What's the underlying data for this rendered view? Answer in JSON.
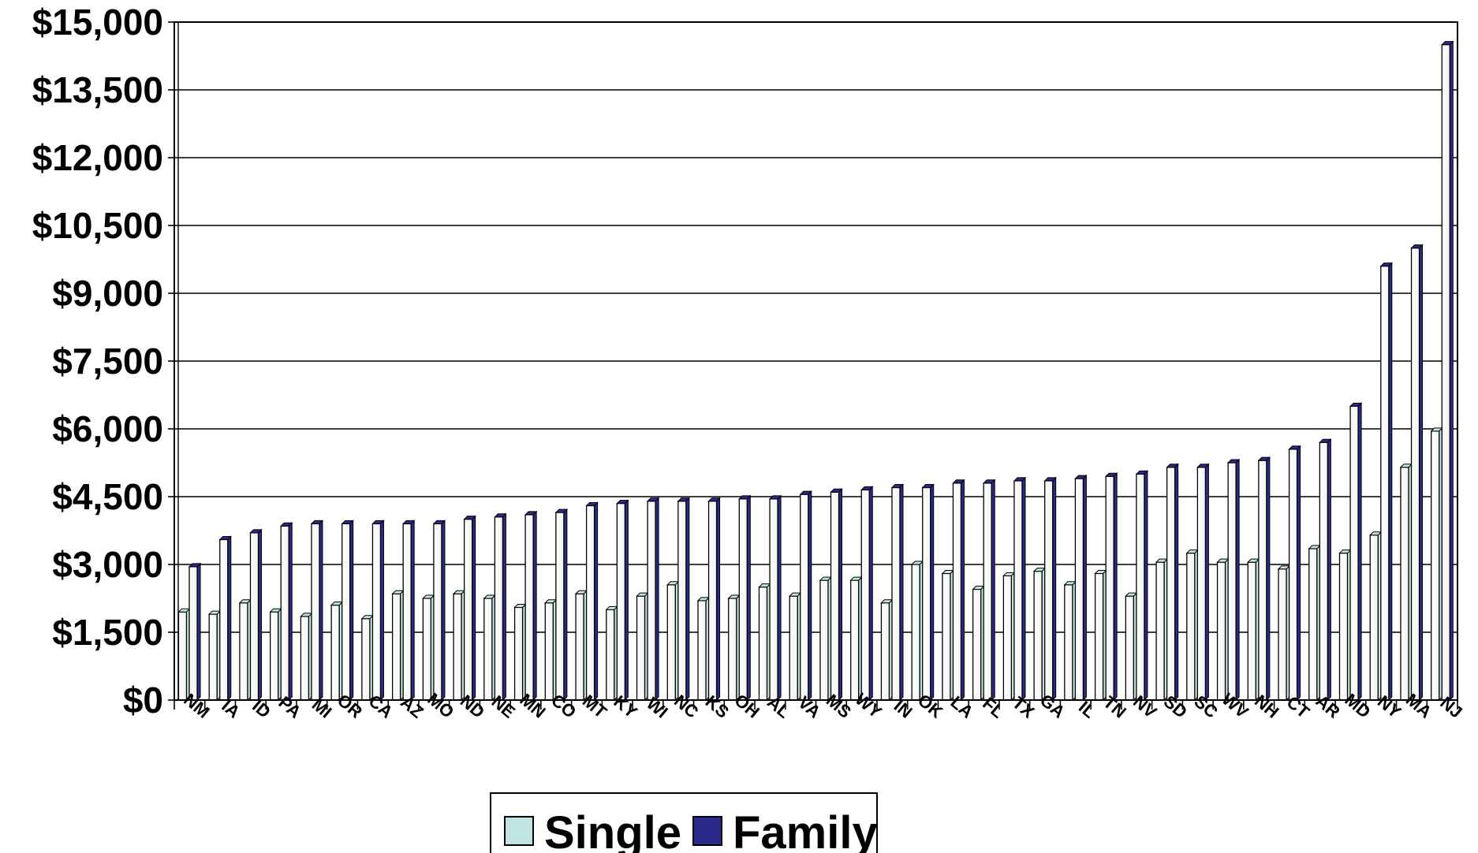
{
  "chart_data": {
    "type": "bar",
    "categories": [
      "NM",
      "IA",
      "ID",
      "PA",
      "MI",
      "OR",
      "CA",
      "AZ",
      "MO",
      "ND",
      "NE",
      "MN",
      "CO",
      "MT",
      "KY",
      "WI",
      "NC",
      "KS",
      "OH",
      "AL",
      "VA",
      "MS",
      "WY",
      "IN",
      "OK",
      "LA",
      "FL",
      "TX",
      "GA",
      "IL",
      "TN",
      "NV",
      "SD",
      "SC",
      "WV",
      "NH",
      "CT",
      "AR",
      "MD",
      "NY",
      "MA",
      "NJ"
    ],
    "series": [
      {
        "name": "Single",
        "color": "#c0e4e4",
        "values": [
          1950,
          1900,
          2150,
          1950,
          1850,
          2100,
          1800,
          2350,
          2250,
          2350,
          2250,
          2050,
          2150,
          2350,
          2000,
          2300,
          2550,
          2200,
          2250,
          2500,
          2300,
          2650,
          2650,
          2150,
          3000,
          2800,
          2450,
          2750,
          2850,
          2550,
          2800,
          2300,
          3050,
          3250,
          3050,
          3050,
          2900,
          3350,
          3250,
          3650,
          5150,
          5950
        ]
      },
      {
        "name": "Family",
        "color": "#2a2a8a",
        "values": [
          2950,
          3550,
          3700,
          3850,
          3900,
          3900,
          3900,
          3900,
          3900,
          4000,
          4050,
          4100,
          4150,
          4300,
          4350,
          4400,
          4400,
          4400,
          4450,
          4450,
          4550,
          4600,
          4650,
          4700,
          4700,
          4800,
          4800,
          4850,
          4850,
          4900,
          4950,
          5000,
          5150,
          5150,
          5250,
          5300,
          5550,
          5700,
          6500,
          9600,
          10000,
          14500
        ]
      }
    ],
    "ylim": [
      0,
      15000
    ],
    "yticks": [
      "$0",
      "$1,500",
      "$3,000",
      "$4,500",
      "$6,000",
      "$7,500",
      "$9,000",
      "$10,500",
      "$12,000",
      "$13,500",
      "$15,000"
    ],
    "ytick_values": [
      0,
      1500,
      3000,
      4500,
      6000,
      7500,
      9000,
      10500,
      12000,
      13500,
      15000
    ],
    "grid": true,
    "legend": "bottom-center",
    "xlabel": "",
    "ylabel": ""
  }
}
